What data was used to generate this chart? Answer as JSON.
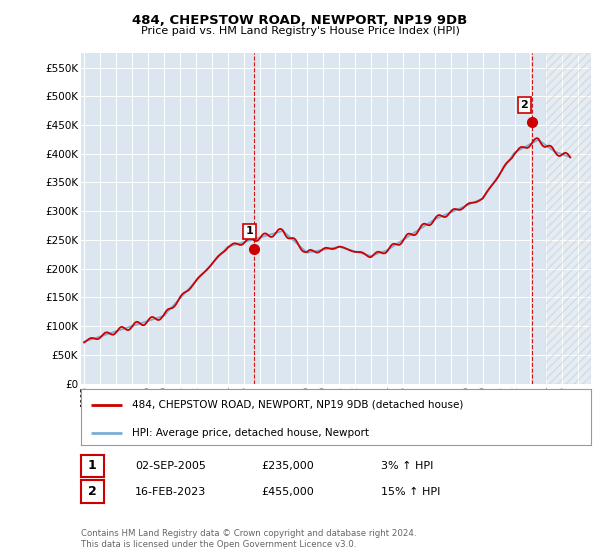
{
  "title": "484, CHEPSTOW ROAD, NEWPORT, NP19 9DB",
  "subtitle": "Price paid vs. HM Land Registry's House Price Index (HPI)",
  "ylim": [
    0,
    575000
  ],
  "yticks": [
    0,
    50000,
    100000,
    150000,
    200000,
    250000,
    300000,
    350000,
    400000,
    450000,
    500000,
    550000
  ],
  "ytick_labels": [
    "£0",
    "£50K",
    "£100K",
    "£150K",
    "£200K",
    "£250K",
    "£300K",
    "£350K",
    "£400K",
    "£450K",
    "£500K",
    "£550K"
  ],
  "background_color": "#ffffff",
  "plot_bg_color": "#dce6f1",
  "grid_color": "#ffffff",
  "hpi_line_color": "#7aadd4",
  "price_line_color": "#cc0000",
  "marker_color": "#cc0000",
  "vline_color": "#cc0000",
  "legend_label_price": "484, CHEPSTOW ROAD, NEWPORT, NP19 9DB (detached house)",
  "legend_label_hpi": "HPI: Average price, detached house, Newport",
  "table_row1": [
    "1",
    "02-SEP-2005",
    "£235,000",
    "3% ↑ HPI"
  ],
  "table_row2": [
    "2",
    "16-FEB-2023",
    "£455,000",
    "15% ↑ HPI"
  ],
  "footnote": "Contains HM Land Registry data © Crown copyright and database right 2024.\nThis data is licensed under the Open Government Licence v3.0.",
  "xlim_start": 1994.8,
  "xlim_end": 2026.8,
  "sale1_x": 2005.67,
  "sale1_y": 235000,
  "sale2_x": 2023.12,
  "sale2_y": 455000
}
